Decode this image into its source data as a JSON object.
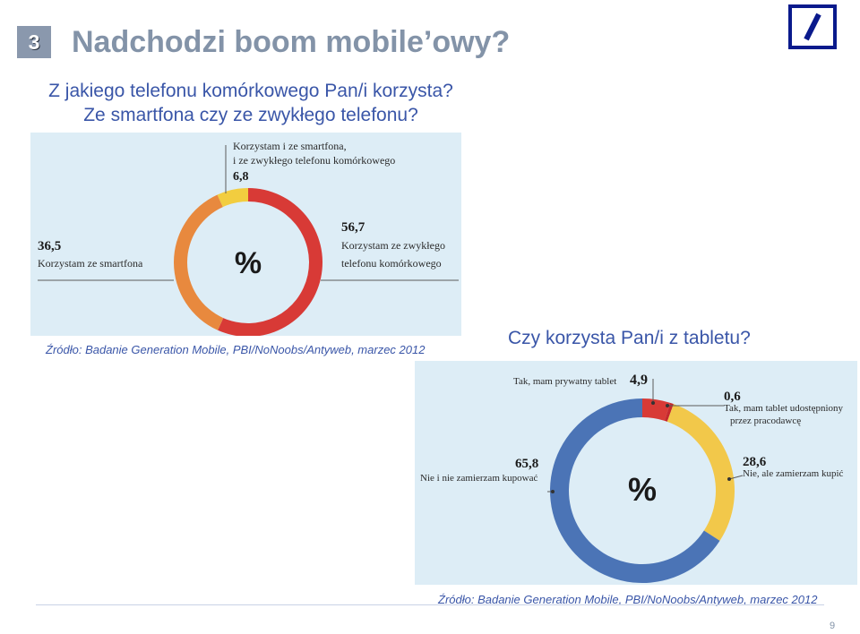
{
  "slide": {
    "section_number": "3",
    "title": "Nadchodzi boom mobile’owy?",
    "page_number": "9"
  },
  "question1": {
    "line1": "Z jakiego telefonu komórkowego Pan/i korzysta?",
    "line2": "Ze smartfona czy ze zwykłego telefonu?"
  },
  "source1": "Źródło: Badanie Generation Mobile, PBI/NoNoobs/Antyweb, marzec 2012",
  "question2": "Czy korzysta Pan/i z tabletu?",
  "source2": "Źródło: Badanie Generation Mobile, PBI/NoNoobs/Antyweb, marzec 2012",
  "colors": {
    "phone_red": "#d83a36",
    "phone_orange": "#e8893e",
    "phone_yellow": "#f2cd3f",
    "tablet_red": "#d83a36",
    "tablet_red_small": "#c6282c",
    "tablet_yellow": "#f2c84a",
    "tablet_blue": "#4b74b6"
  },
  "chart_data": [
    {
      "type": "pie",
      "center_label": "%",
      "slices": [
        {
          "value": 56.7,
          "value_label": "56,7",
          "label_lines": [
            "Korzystam ze zwykłego",
            "telefonu komórkowego"
          ],
          "color": "#d83a36"
        },
        {
          "value": 36.5,
          "value_label": "36,5",
          "label_lines": [
            "Korzystam ze smartfona"
          ],
          "color": "#e8893e"
        },
        {
          "value": 6.8,
          "value_label": "6,8",
          "label_lines": [
            "Korzystam i ze smartfona,",
            "i ze zwykłego telefonu komórkowego"
          ],
          "color": "#f2cd3f"
        }
      ]
    },
    {
      "type": "pie",
      "center_label": "%",
      "slices": [
        {
          "value": 4.9,
          "value_label": "4,9",
          "label_lines": [
            "Tak, mam prywatny tablet"
          ],
          "color": "#d83a36"
        },
        {
          "value": 0.6,
          "value_label": "0,6",
          "label_lines": [
            "Tak, mam tablet udostępniony",
            "przez pracodawcę"
          ],
          "color": "#c6282c"
        },
        {
          "value": 28.6,
          "value_label": "28,6",
          "label_lines": [
            "Nie, ale zamierzam kupić"
          ],
          "color": "#f2c84a"
        },
        {
          "value": 65.8,
          "value_label": "65,8",
          "label_lines": [
            "Nie i nie zamierzam kupować"
          ],
          "color": "#4b74b6"
        }
      ]
    }
  ]
}
